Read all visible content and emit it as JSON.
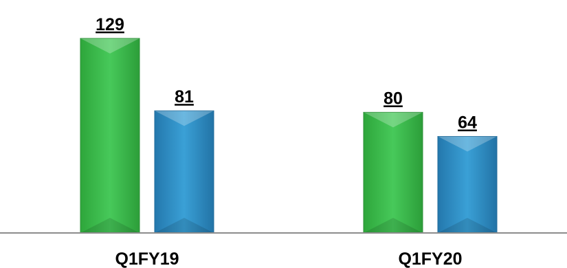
{
  "chart_data": {
    "type": "bar",
    "categories": [
      "Q1FY19",
      "Q1FY20"
    ],
    "series": [
      {
        "values": [
          129,
          81
        ],
        "color": "#3fbf4f"
      },
      {
        "values": [
          80,
          64
        ],
        "color": "#2f8fc4"
      }
    ],
    "grouping": [
      [
        129,
        81
      ],
      [
        80,
        64
      ]
    ],
    "data_labels": [
      "129",
      "81",
      "80",
      "64"
    ],
    "ylim": [
      0,
      140
    ],
    "grid": false,
    "legend": "none",
    "title": "",
    "xlabel": "",
    "ylabel": ""
  }
}
